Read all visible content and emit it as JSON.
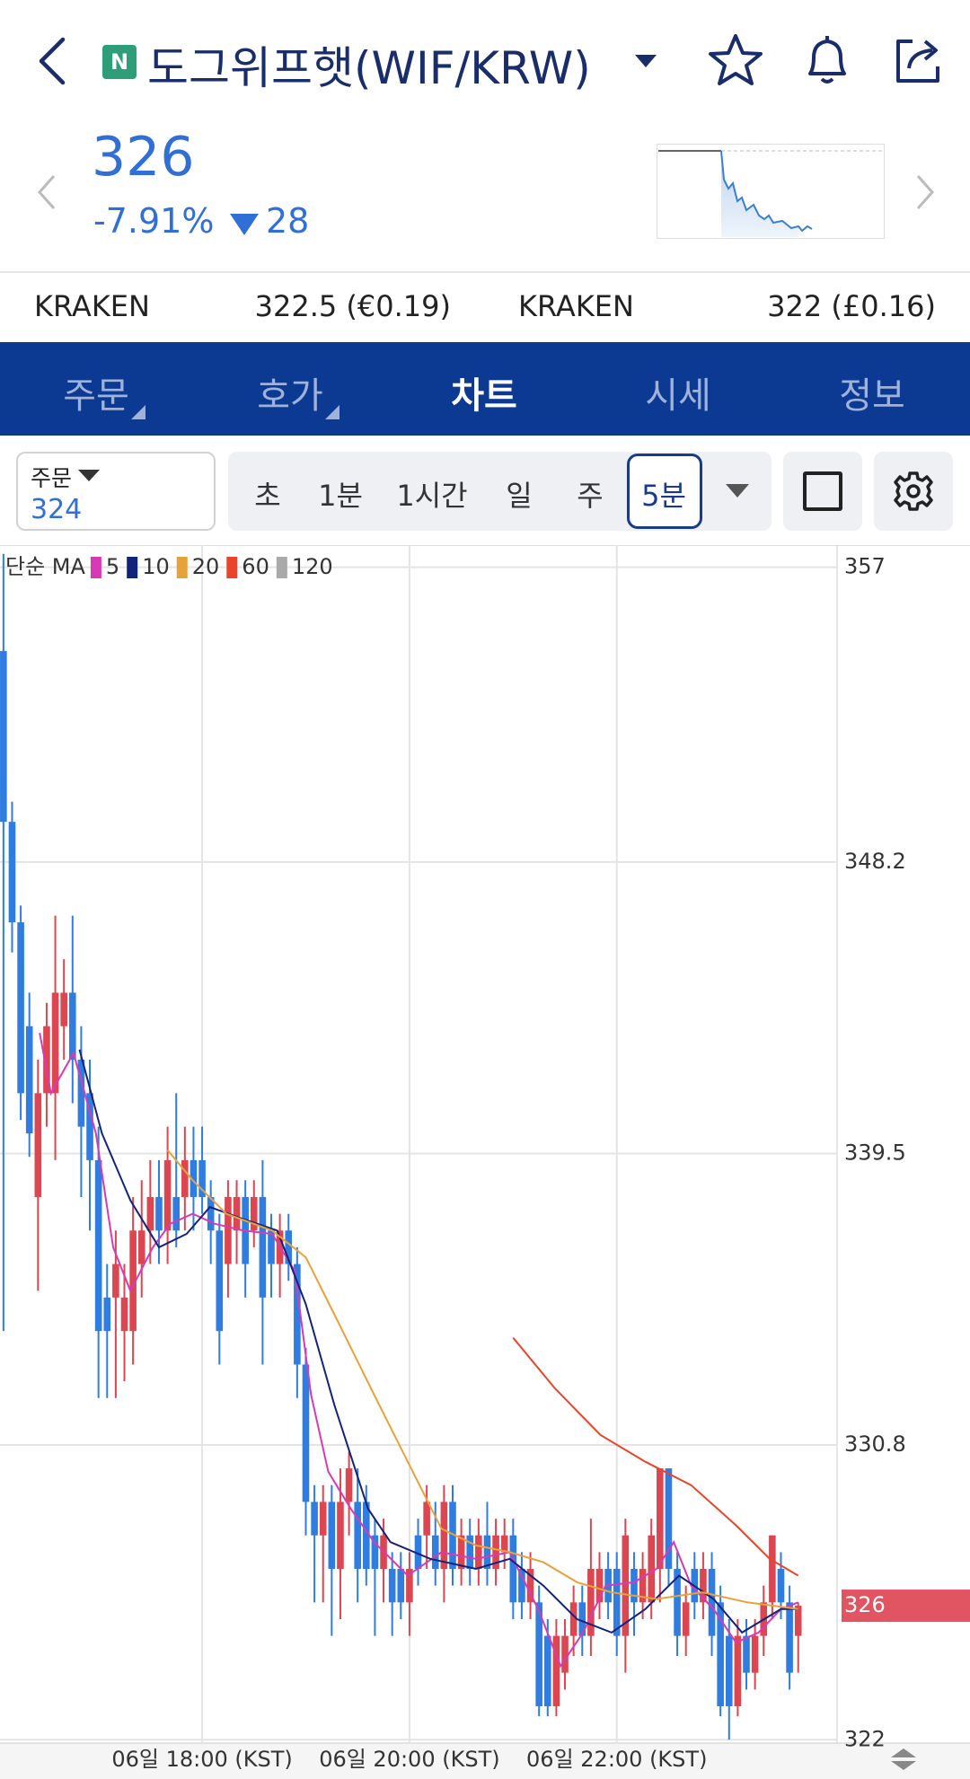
{
  "header": {
    "badge": "N",
    "title": "도그위프햇(WIF/KRW)"
  },
  "price": {
    "current": "326",
    "change_pct": "-7.91%",
    "change": "28"
  },
  "exchanges": [
    {
      "name": "KRAKEN",
      "price": "322.5 (€0.19)"
    },
    {
      "name": "KRAKEN",
      "price": "322 (£0.16)"
    }
  ],
  "tabs": [
    "주문",
    "호가",
    "차트",
    "시세",
    "정보"
  ],
  "toolbar": {
    "order_label": "주문",
    "order_value": "324",
    "intervals": [
      "초",
      "1분",
      "1시간",
      "일",
      "주",
      "5분"
    ]
  },
  "chart_data": {
    "type": "candlestick",
    "legend_title": "단순 MA",
    "up_color": "#dc4650",
    "down_color": "#2f7de1",
    "xlim": [
      -0.4,
      96.5
    ],
    "xticks": [
      {
        "value": 23,
        "label": "06일 18:00 (KST)"
      },
      {
        "value": 47,
        "label": "06일 20:00 (KST)"
      },
      {
        "value": 71,
        "label": "06일 22:00 (KST)"
      }
    ],
    "ylim": [
      321.9,
      357.5
    ],
    "yticks": [
      357,
      348.2,
      339.5,
      330.8,
      322
    ],
    "grid": true,
    "current_price": 326,
    "open": [
      354.5,
      349.4,
      346.4,
      343.3,
      338.2,
      341.3,
      341.3,
      343.3,
      344.3,
      342.3,
      341.3,
      339.3,
      335.2,
      335.2,
      334.2,
      334.2,
      336.2,
      337.2,
      338.2,
      337.2,
      338.2,
      338.2,
      339.3,
      339.3,
      338.2,
      337.2,
      336.2,
      337.2,
      338.2,
      337.2,
      338.2,
      337.2,
      336.2,
      337.2,
      336.2,
      333.2,
      329.1,
      328.1,
      329.1,
      327.1,
      329.1,
      329.1,
      329.1,
      328.1,
      327.1,
      327.1,
      327.1,
      326.1,
      328.1,
      328.1,
      328.1,
      327.1,
      329.1,
      327.1,
      328.1,
      327.1,
      328.1,
      327.1,
      327.6,
      328.1,
      327.1,
      326.1,
      326.1,
      325.1,
      323.0,
      324.0,
      325.1,
      326.1,
      325.1,
      326.1,
      327.1,
      327.1,
      325.1,
      327.1,
      326.1,
      326.1,
      327.1,
      330.1,
      327.1,
      325.1,
      327.1,
      326.1,
      327.1,
      326.1,
      325.1,
      323.0,
      325.1,
      324.0,
      325.1,
      326.1,
      327.1,
      326.1,
      325.1
    ],
    "high": [
      357.4,
      350.0,
      346.9,
      344.3,
      342.3,
      344.0,
      346.6,
      345.3,
      346.6,
      343.3,
      342.3,
      340.3,
      336.2,
      337.2,
      336.2,
      338.2,
      338.7,
      339.3,
      339.3,
      340.3,
      341.3,
      340.3,
      340.3,
      340.3,
      338.7,
      337.7,
      338.7,
      338.7,
      338.7,
      338.7,
      339.3,
      337.7,
      337.7,
      337.7,
      336.7,
      333.7,
      329.6,
      329.6,
      329.6,
      330.1,
      330.6,
      330.1,
      329.6,
      328.6,
      328.6,
      327.6,
      327.6,
      327.6,
      328.6,
      329.6,
      329.1,
      329.6,
      329.6,
      328.6,
      328.6,
      328.6,
      329.1,
      328.6,
      328.6,
      328.6,
      327.6,
      327.6,
      326.6,
      325.6,
      325.6,
      325.6,
      326.6,
      326.6,
      328.6,
      327.6,
      327.6,
      327.6,
      328.6,
      327.6,
      327.6,
      328.6,
      330.1,
      330.1,
      327.6,
      326.6,
      327.6,
      327.6,
      327.6,
      326.6,
      325.6,
      325.6,
      325.6,
      325.6,
      326.6,
      328.1,
      327.6,
      326.6,
      326.1
    ],
    "low": [
      334.2,
      345.5,
      340.5,
      339.4,
      335.4,
      340.3,
      339.3,
      342.3,
      341.0,
      338.2,
      337.2,
      332.2,
      332.2,
      332.2,
      332.7,
      333.2,
      335.2,
      336.2,
      336.2,
      336.2,
      336.7,
      337.2,
      337.2,
      337.7,
      336.2,
      333.2,
      335.2,
      336.2,
      335.2,
      336.7,
      333.2,
      335.2,
      335.2,
      335.7,
      332.2,
      328.1,
      326.1,
      326.1,
      325.1,
      325.6,
      328.1,
      326.1,
      326.6,
      325.1,
      326.1,
      325.1,
      325.6,
      325.1,
      326.6,
      327.1,
      326.6,
      326.1,
      326.6,
      326.6,
      326.6,
      326.6,
      326.6,
      326.6,
      327.1,
      325.6,
      325.6,
      325.6,
      322.7,
      322.7,
      322.7,
      323.5,
      324.5,
      324.5,
      324.5,
      325.6,
      325.6,
      324.5,
      324.0,
      325.1,
      325.6,
      325.6,
      326.1,
      326.6,
      324.5,
      324.5,
      325.6,
      325.6,
      324.5,
      322.7,
      322.0,
      322.7,
      323.5,
      323.5,
      324.5,
      325.6,
      325.6,
      323.5,
      324.0
    ],
    "close": [
      349.4,
      346.4,
      341.3,
      340.1,
      341.3,
      343.3,
      344.3,
      344.3,
      342.3,
      340.3,
      339.3,
      334.2,
      334.2,
      336.2,
      335.2,
      337.2,
      337.2,
      338.2,
      337.2,
      339.3,
      337.2,
      339.3,
      338.2,
      338.2,
      337.2,
      334.2,
      338.2,
      338.2,
      336.2,
      338.2,
      335.2,
      336.2,
      337.2,
      336.2,
      333.2,
      329.1,
      328.1,
      329.1,
      327.1,
      329.1,
      330.1,
      327.1,
      327.1,
      327.1,
      328.1,
      326.1,
      326.1,
      327.1,
      327.1,
      329.1,
      327.1,
      329.1,
      327.1,
      328.1,
      327.1,
      328.1,
      327.1,
      328.1,
      328.1,
      326.1,
      326.1,
      327.1,
      323.0,
      323.0,
      325.1,
      325.1,
      326.1,
      325.1,
      327.1,
      327.1,
      326.1,
      325.1,
      328.1,
      326.1,
      327.1,
      328.1,
      330.1,
      327.1,
      325.1,
      326.1,
      326.1,
      327.1,
      325.1,
      323.0,
      323.0,
      325.1,
      324.0,
      325.1,
      326.1,
      328.1,
      326.1,
      324.0,
      326
    ],
    "series": [
      {
        "name": "5",
        "color": "#d63bb5",
        "x": [
          4.2,
          5.5,
          8.1,
          10.7,
          12.7,
          14.7,
          17.3,
          19.3,
          21.9,
          24.5,
          27.8,
          31.1,
          33.7,
          35.6,
          37.6,
          40.2,
          42.9,
          46.8,
          50.7,
          54.7,
          58.6,
          61.9,
          64.5,
          67.1,
          69.7,
          73,
          75.6,
          77.6,
          79.6,
          82.2,
          84.8,
          87.4,
          90,
          92
        ],
        "values": [
          343.1,
          341.3,
          342.5,
          340.1,
          336.7,
          335.4,
          336.7,
          337.4,
          337.7,
          337.4,
          337.2,
          337.1,
          336.0,
          332.3,
          330.0,
          328.9,
          327.9,
          326.9,
          327.6,
          327.4,
          327.6,
          325.9,
          324.2,
          325.2,
          326.6,
          326.7,
          327.1,
          327.9,
          326.6,
          325.9,
          324.9,
          325.2,
          325.9,
          326.1
        ]
      },
      {
        "name": "10",
        "color": "#14237a",
        "x": [
          8.8,
          11.4,
          14.7,
          18,
          21.2,
          23.9,
          27.1,
          31.7,
          35,
          38.3,
          42.2,
          44.8,
          49.4,
          54.7,
          58.6,
          62.5,
          66.4,
          70.4,
          74.3,
          78.2,
          82.2,
          85.5,
          90,
          92
        ],
        "values": [
          342.6,
          340.1,
          338.1,
          336.7,
          337.1,
          337.9,
          337.6,
          337.2,
          335.0,
          332.0,
          328.9,
          327.9,
          327.4,
          327.1,
          327.4,
          326.6,
          325.6,
          325.2,
          325.9,
          326.9,
          326.2,
          325.2,
          325.9,
          325.9
        ]
      },
      {
        "name": "20",
        "color": "#e8a23a",
        "x": [
          19,
          21.9,
          25.8,
          31.1,
          35,
          38.3,
          42.9,
          46.8,
          50.7,
          54.7,
          58.6,
          62.5,
          66.4,
          70.4,
          75.6,
          80.9,
          86.1,
          92
        ],
        "values": [
          339.6,
          338.7,
          337.7,
          337.2,
          336.4,
          334.7,
          332.3,
          330.3,
          328.3,
          327.8,
          327.6,
          327.3,
          326.7,
          326.4,
          326.2,
          326.4,
          326.1,
          325.9
        ]
      },
      {
        "name": "60",
        "color": "#e8452a",
        "x": [
          59,
          63.8,
          69.1,
          74.3,
          79.6,
          84.8,
          88.7,
          92
        ],
        "values": [
          334.0,
          332.5,
          331.1,
          330.3,
          329.6,
          328.4,
          327.4,
          326.9
        ]
      },
      {
        "name": "120",
        "color": "#aaaaaa",
        "x": [],
        "values": []
      }
    ]
  }
}
